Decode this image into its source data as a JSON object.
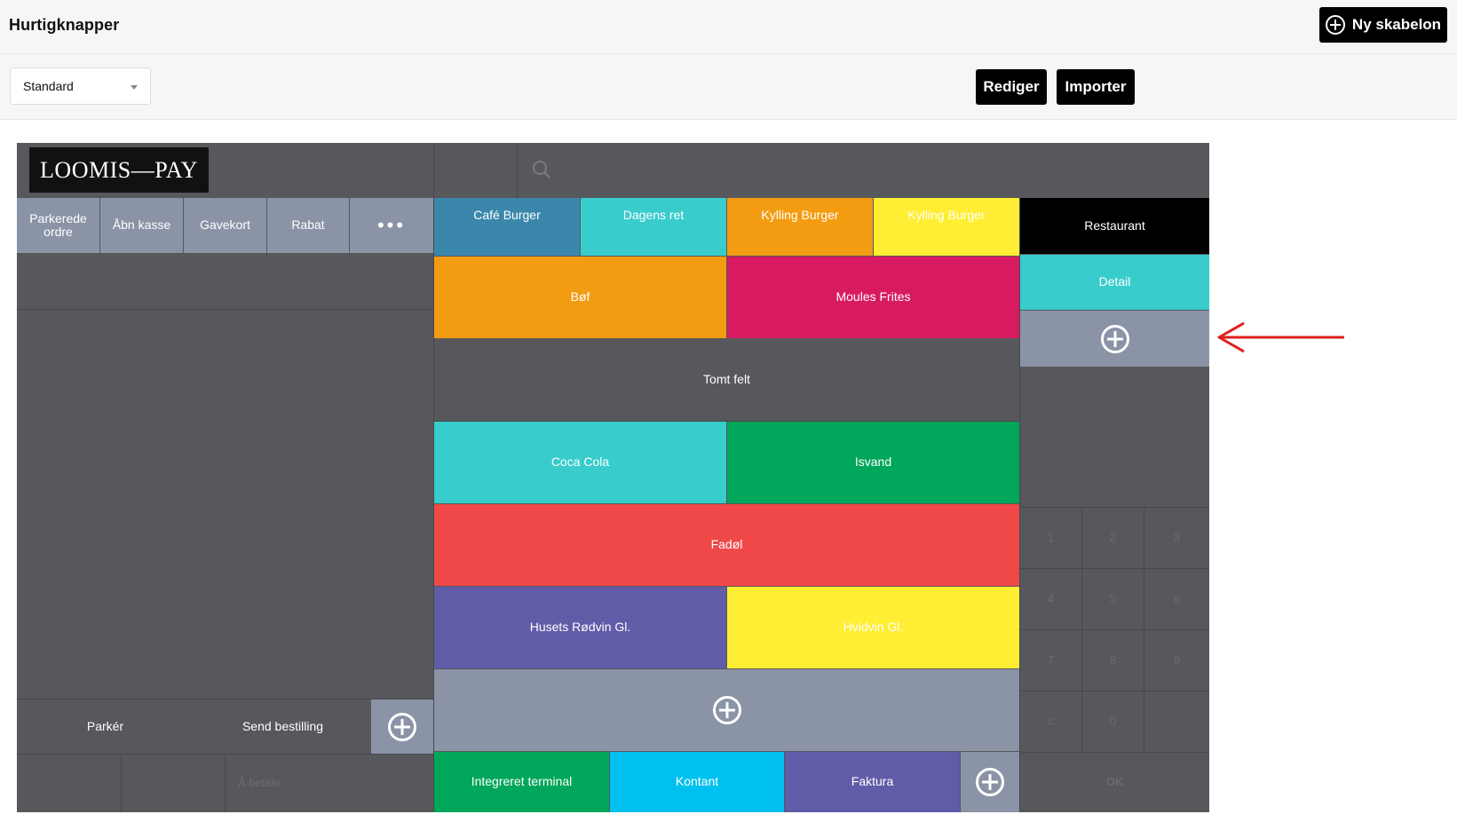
{
  "header": {
    "title": "Hurtigknapper",
    "new_template_label": "Ny skabelon"
  },
  "toolbar": {
    "selected_template": "Standard",
    "edit_label": "Rediger",
    "import_label": "Importer"
  },
  "pos": {
    "logo_text": "LOOMIS—PAY",
    "actions": [
      "Parkerede ordre",
      "Åbn kasse",
      "Gavekort",
      "Rabat"
    ],
    "categories": [
      "Restaurant",
      "Detail"
    ],
    "products": {
      "cafe_burger": "Café Burger",
      "dagens_ret": "Dagens ret",
      "kylling_burger_1": "Kylling Burger",
      "kylling_burger_2": "Kylling Burger",
      "bof": "Bøf",
      "moules_frites": "Moules Frites",
      "tomt_felt": "Tomt felt",
      "coca_cola": "Coca Cola",
      "isvand": "Isvand",
      "fadol": "Fadøl",
      "rodvin": "Husets Rødvin Gl.",
      "hvidvin": "Hvidvin Gl."
    },
    "order_buttons": {
      "park": "Parkér",
      "send": "Send bestilling"
    },
    "to_pay_placeholder": "Å betale",
    "payments": [
      "Integreret terminal",
      "Kontant",
      "Faktura"
    ],
    "numpad": [
      "1",
      "2",
      "3",
      "4",
      "5",
      "6",
      "7",
      "8",
      "9",
      "c",
      "0",
      "."
    ],
    "ok_label": "OK"
  },
  "colors": {
    "dark_gray": "#57585c",
    "light_gray": "#8b93a6",
    "blue": "#3a87ab",
    "cyan": "#39cccc",
    "orange": "#f39c12",
    "yellow": "#ffee33",
    "magenta": "#d81b60",
    "green": "#00a65a",
    "red": "#f04848",
    "purple": "#605ca8",
    "light_blue": "#00c0ef",
    "arrow": "#e02020"
  }
}
